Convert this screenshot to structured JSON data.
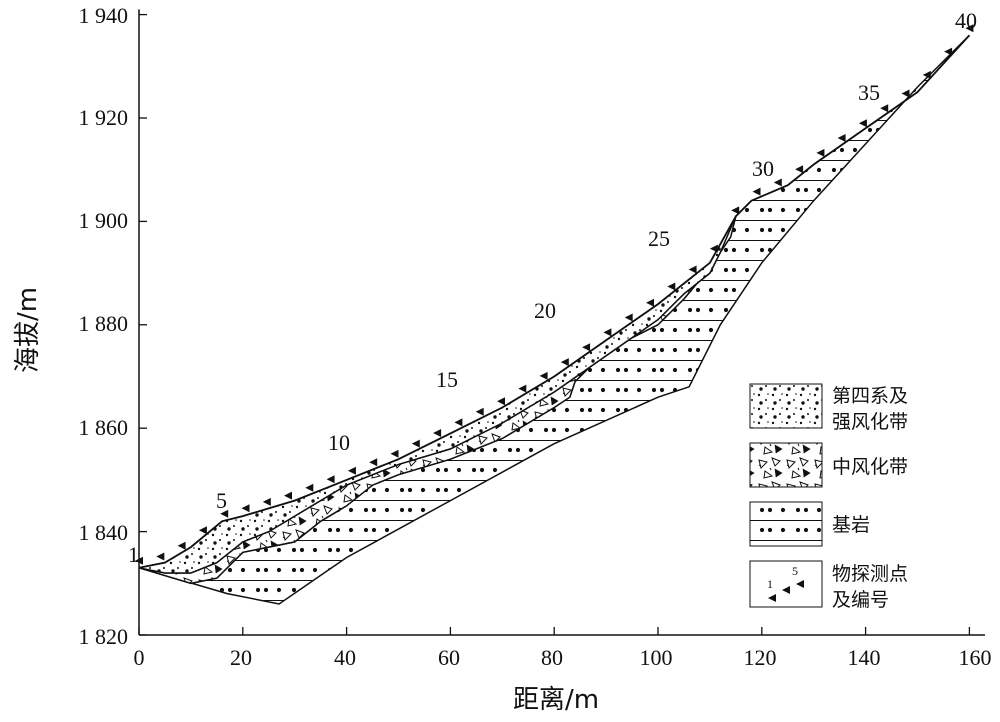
{
  "figure": {
    "xlabel": "距离/m",
    "ylabel": "海拔/m",
    "x_ticks": [
      "0",
      "20",
      "40",
      "60",
      "80",
      "100",
      "120",
      "140",
      "160"
    ],
    "y_ticks": [
      "1 820",
      "1 840",
      "1 860",
      "1 880",
      "1 900",
      "1 920",
      "1 940"
    ],
    "stations": [
      "1",
      "5",
      "10",
      "15",
      "20",
      "25",
      "30",
      "35",
      "40"
    ],
    "legend": [
      {
        "key": "quaternary",
        "line1": "第四系及",
        "line2": "强风化带",
        "pattern": "dots"
      },
      {
        "key": "moderate",
        "line1": "中风化带",
        "line2": "",
        "pattern": "triangles"
      },
      {
        "key": "bedrock",
        "line1": "基岩",
        "line2": "",
        "pattern": "lines-dots"
      },
      {
        "key": "points",
        "line1": "物探测点",
        "line2": "及编号",
        "pattern": "markers"
      }
    ],
    "legend_marker_labels": [
      "1",
      "5"
    ]
  },
  "colors": {
    "ink": "#111111",
    "background": "#ffffff"
  }
}
